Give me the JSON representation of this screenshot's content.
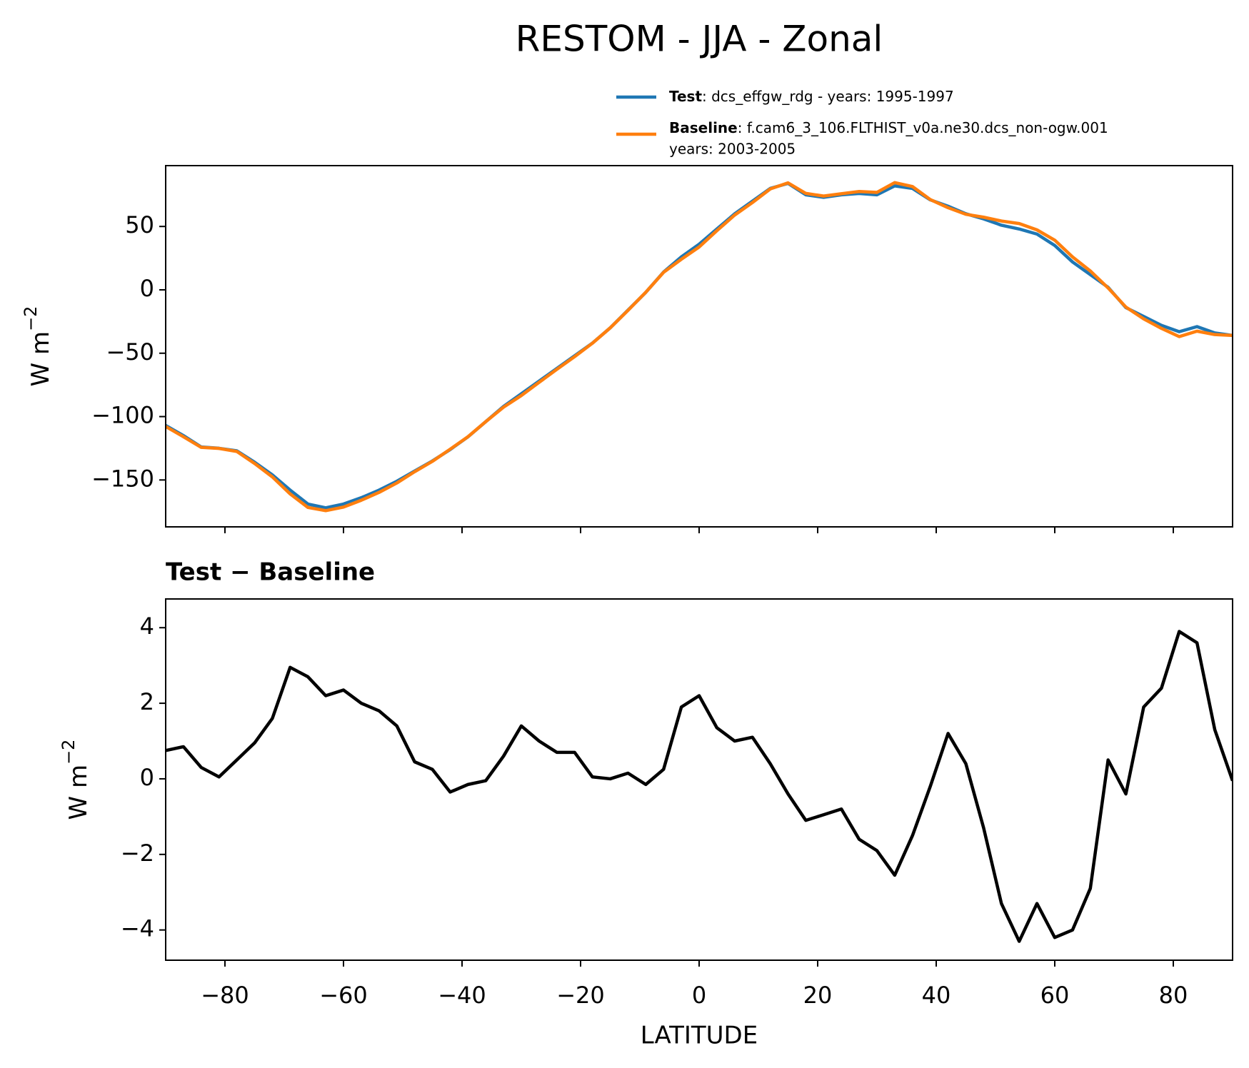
{
  "chart_data": [
    {
      "type": "line",
      "title": "RESTOM - JJA - Zonal",
      "ylabel": "W m",
      "ylabel_superscript": "−2",
      "x": [
        -90,
        -87,
        -84,
        -81,
        -78,
        -75,
        -72,
        -69,
        -66,
        -63,
        -60,
        -57,
        -54,
        -51,
        -48,
        -45,
        -42,
        -39,
        -36,
        -33,
        -30,
        -27,
        -24,
        -21,
        -18,
        -15,
        -12,
        -9,
        -6,
        -3,
        0,
        3,
        6,
        9,
        12,
        15,
        18,
        21,
        24,
        27,
        30,
        33,
        36,
        39,
        42,
        45,
        48,
        51,
        54,
        57,
        60,
        63,
        66,
        69,
        72,
        75,
        78,
        81,
        84,
        87,
        90
      ],
      "series": [
        {
          "name": "Test",
          "description": [
            ": dcs_effgw_rdg - years: 1995-1997"
          ],
          "color": "#1f77b4",
          "values": [
            -107,
            -115,
            -124,
            -125,
            -127,
            -136,
            -146,
            -158,
            -169,
            -172,
            -169,
            -164,
            -158,
            -151,
            -143,
            -135,
            -126,
            -116,
            -104,
            -92,
            -82,
            -72,
            -62,
            -52,
            -42,
            -30,
            -16,
            -2,
            14,
            26,
            36,
            48,
            60,
            70,
            80,
            84,
            75,
            73,
            75,
            76,
            75,
            82,
            80,
            71,
            66,
            60,
            56,
            51,
            48,
            44,
            35,
            22,
            12,
            2,
            -14,
            -21,
            -28,
            -33,
            -29,
            -34,
            -36
          ]
        },
        {
          "name": "Baseline",
          "description": [
            ": f.cam6_3_106.FLTHIST_v0a.ne30.dcs_non-ogw.001",
            "years: 2003-2005"
          ],
          "color": "#ff7f0e",
          "values": [
            -107.8,
            -115.9,
            -124.3,
            -125.1,
            -127.5,
            -137.0,
            -147.6,
            -161.0,
            -171.7,
            -174.2,
            -171.4,
            -166.0,
            -159.8,
            -152.4,
            -143.5,
            -135.3,
            -125.7,
            -115.9,
            -104.0,
            -92.6,
            -83.4,
            -73.0,
            -62.7,
            -52.7,
            -42.1,
            -30.0,
            -16.2,
            -1.9,
            13.8,
            24.1,
            33.8,
            46.7,
            59.0,
            68.9,
            79.6,
            84.4,
            76.1,
            74.0,
            75.8,
            77.6,
            76.9,
            84.6,
            81.5,
            71.2,
            64.8,
            59.6,
            57.3,
            54.3,
            52.3,
            47.3,
            39.2,
            26.0,
            14.9,
            1.5,
            -13.6,
            -22.9,
            -30.4,
            -36.9,
            -32.6,
            -35.3,
            -35.95
          ]
        }
      ],
      "xlim": [
        -90,
        90
      ],
      "xticks": [
        -80,
        -60,
        -40,
        -20,
        0,
        20,
        40,
        60,
        80
      ],
      "ylim": [
        -187,
        98
      ],
      "yticks": [
        {
          "value": -150,
          "label": "−150"
        },
        {
          "value": -100,
          "label": "−100"
        },
        {
          "value": -50,
          "label": "−50"
        },
        0,
        50
      ]
    },
    {
      "type": "line",
      "title": "Test − Baseline",
      "ylabel": "W m",
      "ylabel_superscript": "−2",
      "xlabel": "LATITUDE",
      "x": [
        -90,
        -87,
        -84,
        -81,
        -78,
        -75,
        -72,
        -69,
        -66,
        -63,
        -60,
        -57,
        -54,
        -51,
        -48,
        -45,
        -42,
        -39,
        -36,
        -33,
        -30,
        -27,
        -24,
        -21,
        -18,
        -15,
        -12,
        -9,
        -6,
        -3,
        0,
        3,
        6,
        9,
        12,
        15,
        18,
        21,
        24,
        27,
        30,
        33,
        36,
        39,
        42,
        45,
        48,
        51,
        54,
        57,
        60,
        63,
        66,
        69,
        72,
        75,
        78,
        81,
        84,
        87,
        90
      ],
      "series": [
        {
          "color": "#000000",
          "values": [
            0.75,
            0.85,
            0.3,
            0.05,
            0.5,
            0.95,
            1.6,
            2.95,
            2.7,
            2.2,
            2.35,
            2.0,
            1.8,
            1.4,
            0.45,
            0.25,
            -0.35,
            -0.15,
            -0.05,
            0.6,
            1.4,
            1.0,
            0.7,
            0.7,
            0.05,
            0.0,
            0.15,
            -0.15,
            0.25,
            1.9,
            2.2,
            1.35,
            1.0,
            1.1,
            0.4,
            -0.4,
            -1.1,
            -0.95,
            -0.8,
            -1.6,
            -1.9,
            -2.55,
            -1.5,
            -0.2,
            1.2,
            0.4,
            -1.3,
            -3.3,
            -4.3,
            -3.3,
            -4.2,
            -4.0,
            -2.9,
            0.5,
            -0.4,
            1.9,
            2.4,
            3.9,
            3.6,
            1.3,
            -0.05
          ]
        }
      ],
      "xlim": [
        -90,
        90
      ],
      "xticks": [
        {
          "value": -80,
          "label": "−80"
        },
        {
          "value": -60,
          "label": "−60"
        },
        {
          "value": -40,
          "label": "−40"
        },
        {
          "value": -20,
          "label": "−20"
        },
        0,
        20,
        40,
        60,
        80
      ],
      "ylim": [
        -4.8,
        4.76
      ],
      "yticks": [
        {
          "value": -4,
          "label": "−4"
        },
        {
          "value": -2,
          "label": "−2"
        },
        0,
        2,
        4
      ]
    }
  ]
}
